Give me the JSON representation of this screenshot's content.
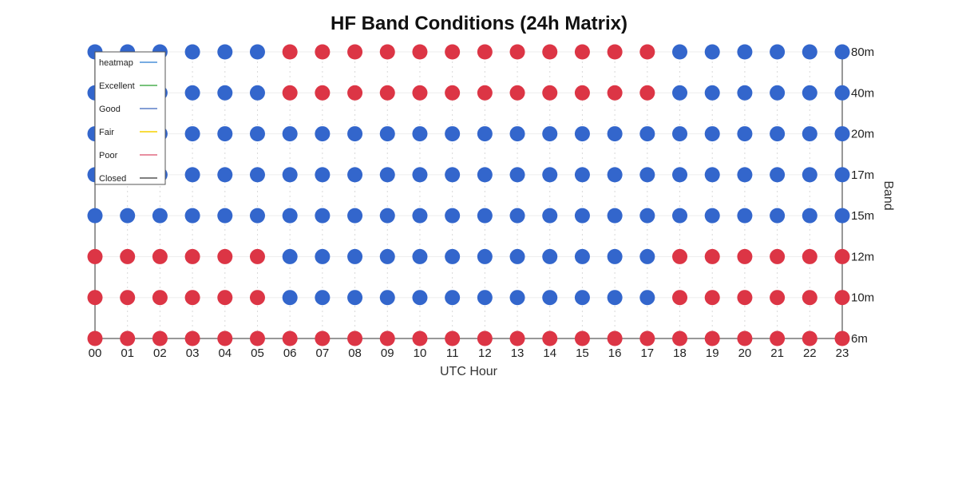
{
  "chart_data": {
    "type": "heatmap",
    "title": "HF Band Conditions (24h Matrix)",
    "xlabel": "UTC Hour",
    "ylabel": "Band",
    "x": [
      "00",
      "01",
      "02",
      "03",
      "04",
      "05",
      "06",
      "07",
      "08",
      "09",
      "10",
      "11",
      "12",
      "13",
      "14",
      "15",
      "16",
      "17",
      "18",
      "19",
      "20",
      "21",
      "22",
      "23"
    ],
    "y": [
      "80m",
      "40m",
      "20m",
      "17m",
      "15m",
      "12m",
      "10m",
      "6m"
    ],
    "legend": {
      "placement": "top-left",
      "entries": [
        {
          "name": "heatmap",
          "color": "#4a90d9"
        },
        {
          "name": "Excellent",
          "color": "#4caf50"
        },
        {
          "name": "Good",
          "color": "#5b7fc7"
        },
        {
          "name": "Fair",
          "color": "#f5d000"
        },
        {
          "name": "Poor",
          "color": "#e06a80"
        },
        {
          "name": "Closed",
          "color": "#555555"
        }
      ]
    },
    "state_colors": {
      "blue": "#3366cc",
      "red": "#dc3545"
    },
    "values": [
      [
        "blue",
        "blue",
        "blue",
        "blue",
        "blue",
        "blue",
        "red",
        "red",
        "red",
        "red",
        "red",
        "red",
        "red",
        "red",
        "red",
        "red",
        "red",
        "red",
        "blue",
        "blue",
        "blue",
        "blue",
        "blue",
        "blue"
      ],
      [
        "blue",
        "blue",
        "blue",
        "blue",
        "blue",
        "blue",
        "red",
        "red",
        "red",
        "red",
        "red",
        "red",
        "red",
        "red",
        "red",
        "red",
        "red",
        "red",
        "blue",
        "blue",
        "blue",
        "blue",
        "blue",
        "blue"
      ],
      [
        "blue",
        "blue",
        "blue",
        "blue",
        "blue",
        "blue",
        "blue",
        "blue",
        "blue",
        "blue",
        "blue",
        "blue",
        "blue",
        "blue",
        "blue",
        "blue",
        "blue",
        "blue",
        "blue",
        "blue",
        "blue",
        "blue",
        "blue",
        "blue"
      ],
      [
        "blue",
        "blue",
        "blue",
        "blue",
        "blue",
        "blue",
        "blue",
        "blue",
        "blue",
        "blue",
        "blue",
        "blue",
        "blue",
        "blue",
        "blue",
        "blue",
        "blue",
        "blue",
        "blue",
        "blue",
        "blue",
        "blue",
        "blue",
        "blue"
      ],
      [
        "blue",
        "blue",
        "blue",
        "blue",
        "blue",
        "blue",
        "blue",
        "blue",
        "blue",
        "blue",
        "blue",
        "blue",
        "blue",
        "blue",
        "blue",
        "blue",
        "blue",
        "blue",
        "blue",
        "blue",
        "blue",
        "blue",
        "blue",
        "blue"
      ],
      [
        "red",
        "red",
        "red",
        "red",
        "red",
        "red",
        "blue",
        "blue",
        "blue",
        "blue",
        "blue",
        "blue",
        "blue",
        "blue",
        "blue",
        "blue",
        "blue",
        "blue",
        "red",
        "red",
        "red",
        "red",
        "red",
        "red"
      ],
      [
        "red",
        "red",
        "red",
        "red",
        "red",
        "red",
        "blue",
        "blue",
        "blue",
        "blue",
        "blue",
        "blue",
        "blue",
        "blue",
        "blue",
        "blue",
        "blue",
        "blue",
        "red",
        "red",
        "red",
        "red",
        "red",
        "red"
      ],
      [
        "red",
        "red",
        "red",
        "red",
        "red",
        "red",
        "red",
        "red",
        "red",
        "red",
        "red",
        "red",
        "red",
        "red",
        "red",
        "red",
        "red",
        "red",
        "red",
        "red",
        "red",
        "red",
        "red",
        "red"
      ]
    ],
    "grid": true
  }
}
